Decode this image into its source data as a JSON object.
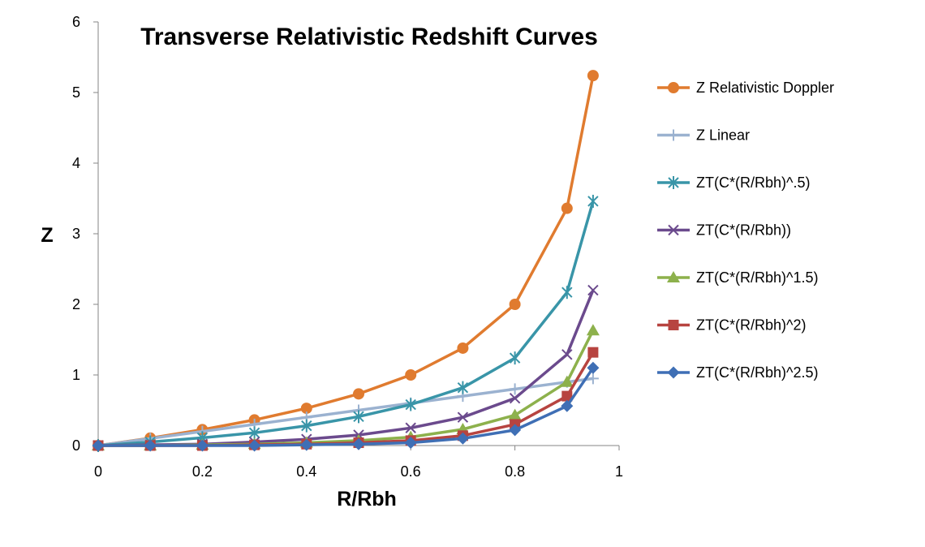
{
  "chart_data": {
    "type": "line",
    "title": "Transverse Relativistic Redshift Curves",
    "xlabel": "R/Rbh",
    "ylabel": "Z",
    "xlim": [
      0,
      1
    ],
    "ylim": [
      0,
      6
    ],
    "xticks": [
      "0",
      "0.2",
      "0.4",
      "0.6",
      "0.8",
      "1"
    ],
    "yticks": [
      "0",
      "1",
      "2",
      "3",
      "4",
      "5",
      "6"
    ],
    "grid": false,
    "legend": "right",
    "x": [
      0,
      0.1,
      0.2,
      0.3,
      0.4,
      0.5,
      0.6,
      0.7,
      0.8,
      0.9,
      0.95
    ],
    "series": [
      {
        "name": "Z Relativistic Doppler",
        "color": "#E07B2F",
        "marker": "circle",
        "values": [
          0,
          0.106,
          0.225,
          0.363,
          0.528,
          0.732,
          1.0,
          1.38,
          2.0,
          3.36,
          5.24
        ]
      },
      {
        "name": "Z Linear",
        "color": "#9BB2D0",
        "marker": "plus",
        "values": [
          0,
          0.1,
          0.2,
          0.3,
          0.4,
          0.5,
          0.6,
          0.7,
          0.8,
          0.9,
          0.95
        ]
      },
      {
        "name": "ZT(C*(R/Rbh)^.5)",
        "color": "#3995A8",
        "marker": "asterisk",
        "values": [
          0,
          0.05,
          0.11,
          0.18,
          0.28,
          0.41,
          0.58,
          0.82,
          1.24,
          2.17,
          3.46
        ]
      },
      {
        "name": "ZT(C*(R/Rbh))",
        "color": "#6B4A8D",
        "marker": "x",
        "values": [
          0,
          0.01,
          0.02,
          0.05,
          0.09,
          0.15,
          0.25,
          0.4,
          0.67,
          1.29,
          2.2
        ]
      },
      {
        "name": "ZT(C*(R/Rbh)^1.5)",
        "color": "#8DB14C",
        "marker": "triangle",
        "values": [
          0,
          0.0,
          0.01,
          0.02,
          0.04,
          0.07,
          0.12,
          0.23,
          0.43,
          0.9,
          1.63
        ]
      },
      {
        "name": "ZT(C*(R/Rbh)^2)",
        "color": "#B74440",
        "marker": "square",
        "values": [
          0,
          0.0,
          0.0,
          0.01,
          0.02,
          0.04,
          0.07,
          0.14,
          0.3,
          0.7,
          1.32
        ]
      },
      {
        "name": "ZT(C*(R/Rbh)^2.5)",
        "color": "#3F6FB5",
        "marker": "diamond",
        "values": [
          0,
          0.0,
          0.0,
          0.0,
          0.01,
          0.02,
          0.04,
          0.1,
          0.22,
          0.56,
          1.1
        ]
      }
    ]
  }
}
